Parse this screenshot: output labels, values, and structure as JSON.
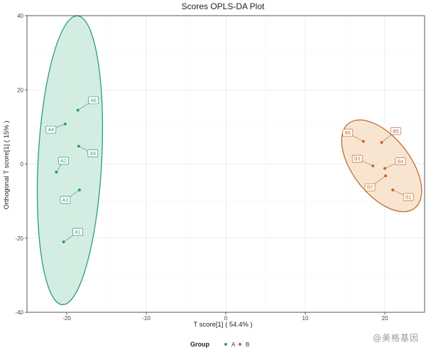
{
  "chart_data": {
    "type": "scatter",
    "title": "Scores OPLS-DA Plot",
    "xlabel": "T score[1] ( 54.4% )",
    "ylabel": "Orthogonal T score[1] ( 15% )",
    "xlim": [
      -25,
      25
    ],
    "ylim": [
      -40,
      40
    ],
    "xticks": [
      -20,
      -10,
      0,
      10,
      20
    ],
    "yticks": [
      -40,
      -20,
      0,
      20,
      40
    ],
    "grid": true,
    "legend": {
      "title": "Group",
      "position": "bottom"
    },
    "series": [
      {
        "name": "A",
        "color": "#2a9d73",
        "fill": "#cdeadd",
        "points": [
          {
            "label": "A1",
            "x": -20.4,
            "y": -21.0
          },
          {
            "label": "A2",
            "x": -21.3,
            "y": -2.2
          },
          {
            "label": "A3",
            "x": -18.4,
            "y": -7.0
          },
          {
            "label": "A4",
            "x": -20.2,
            "y": 10.8
          },
          {
            "label": "A5",
            "x": -18.5,
            "y": 4.8
          },
          {
            "label": "A6",
            "x": -18.6,
            "y": 14.5
          }
        ],
        "ellipse": {
          "cx": -19.6,
          "cy": 1.0,
          "rx_data": 4.0,
          "ry_data": 39.0,
          "rotation_deg": 3
        }
      },
      {
        "name": "B",
        "color": "#c46a2a",
        "fill": "#f6e1c9",
        "points": [
          {
            "label": "B1",
            "x": 21.0,
            "y": -7.0
          },
          {
            "label": "B2",
            "x": 20.1,
            "y": -3.2
          },
          {
            "label": "B3",
            "x": 18.5,
            "y": -0.5
          },
          {
            "label": "B4",
            "x": 20.0,
            "y": -1.2
          },
          {
            "label": "B5",
            "x": 19.6,
            "y": 5.8
          },
          {
            "label": "B6",
            "x": 17.3,
            "y": 6.1
          }
        ],
        "ellipse": {
          "cx": 19.6,
          "cy": -0.5,
          "rx_data": 3.6,
          "ry_data": 14.5,
          "rotation_deg": -38
        }
      }
    ],
    "label_offsets": {
      "A1": [
        20,
        -14
      ],
      "A2": [
        10,
        -16
      ],
      "A3": [
        -20,
        14
      ],
      "A4": [
        -20,
        8
      ],
      "A5": [
        20,
        10
      ],
      "A6": [
        22,
        -14
      ],
      "B1": [
        22,
        10
      ],
      "B2": [
        -22,
        16
      ],
      "B3": [
        -22,
        -10
      ],
      "B4": [
        22,
        -10
      ],
      "B5": [
        20,
        -16
      ],
      "B6": [
        -22,
        -12
      ]
    }
  },
  "watermark": "@美格基因"
}
